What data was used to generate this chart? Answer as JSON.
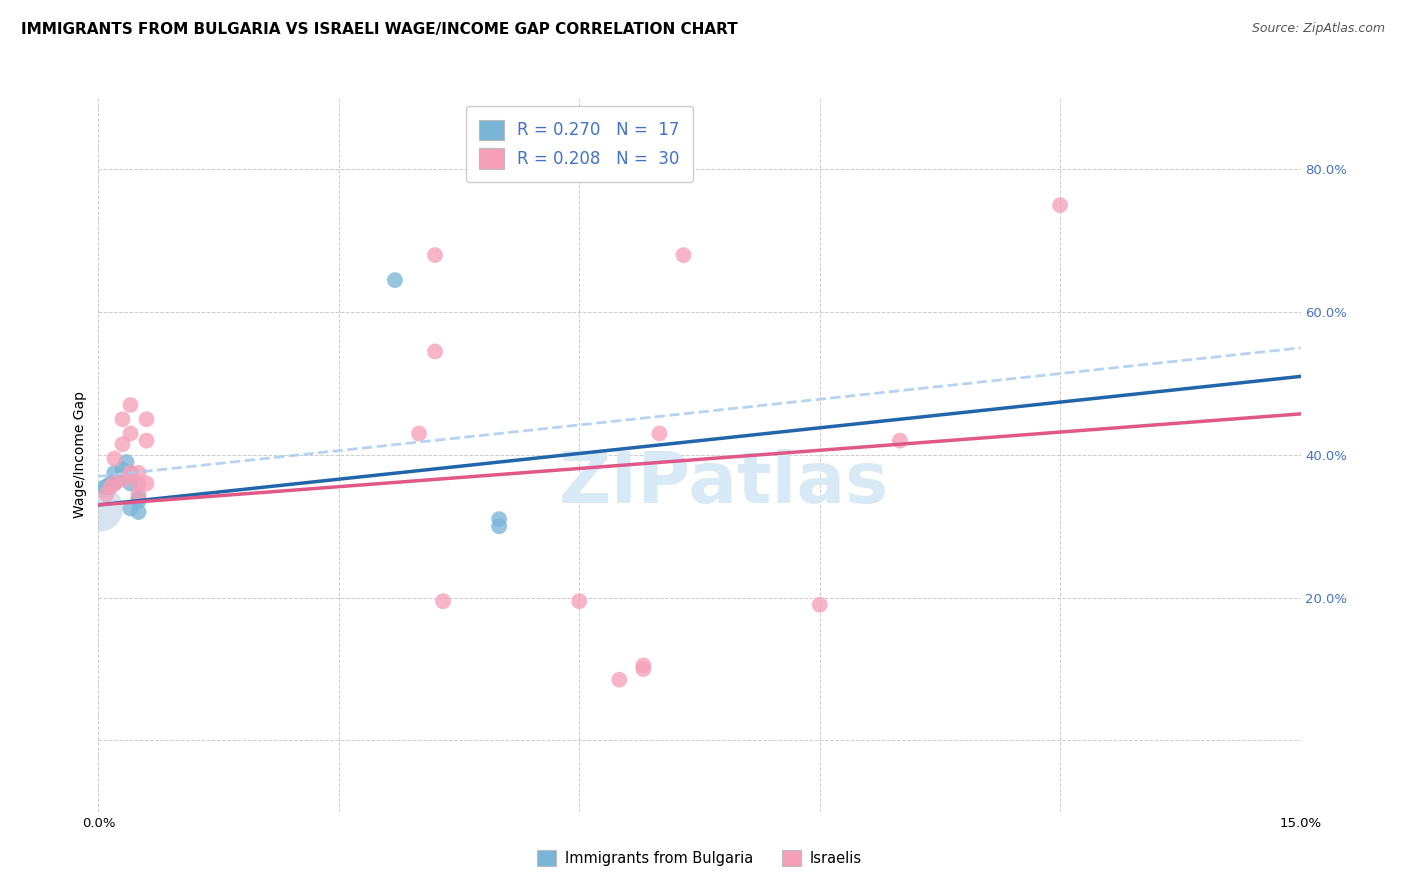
{
  "title": "IMMIGRANTS FROM BULGARIA VS ISRAELI WAGE/INCOME GAP CORRELATION CHART",
  "source": "Source: ZipAtlas.com",
  "ylabel": "Wage/Income Gap",
  "xlim": [
    0.0,
    0.15
  ],
  "ylim": [
    -0.1,
    0.9
  ],
  "blue_scatter": [
    [
      0.0008,
      0.355
    ],
    [
      0.001,
      0.355
    ],
    [
      0.0015,
      0.36
    ],
    [
      0.002,
      0.36
    ],
    [
      0.002,
      0.375
    ],
    [
      0.003,
      0.37
    ],
    [
      0.003,
      0.38
    ],
    [
      0.0035,
      0.39
    ],
    [
      0.004,
      0.325
    ],
    [
      0.004,
      0.36
    ],
    [
      0.004,
      0.375
    ],
    [
      0.005,
      0.32
    ],
    [
      0.005,
      0.335
    ],
    [
      0.005,
      0.34
    ],
    [
      0.037,
      0.645
    ],
    [
      0.05,
      0.3
    ],
    [
      0.05,
      0.31
    ]
  ],
  "blue_scatter_large": [
    [
      0.0002,
      0.325
    ]
  ],
  "pink_scatter": [
    [
      0.001,
      0.345
    ],
    [
      0.0015,
      0.355
    ],
    [
      0.002,
      0.36
    ],
    [
      0.002,
      0.395
    ],
    [
      0.003,
      0.365
    ],
    [
      0.003,
      0.415
    ],
    [
      0.003,
      0.45
    ],
    [
      0.004,
      0.37
    ],
    [
      0.004,
      0.375
    ],
    [
      0.004,
      0.43
    ],
    [
      0.004,
      0.47
    ],
    [
      0.005,
      0.345
    ],
    [
      0.005,
      0.36
    ],
    [
      0.005,
      0.375
    ],
    [
      0.006,
      0.36
    ],
    [
      0.006,
      0.42
    ],
    [
      0.006,
      0.45
    ],
    [
      0.04,
      0.43
    ],
    [
      0.042,
      0.545
    ],
    [
      0.042,
      0.68
    ],
    [
      0.043,
      0.195
    ],
    [
      0.06,
      0.195
    ],
    [
      0.065,
      0.085
    ],
    [
      0.068,
      0.1
    ],
    [
      0.068,
      0.105
    ],
    [
      0.07,
      0.43
    ],
    [
      0.073,
      0.68
    ],
    [
      0.09,
      0.19
    ],
    [
      0.1,
      0.42
    ],
    [
      0.12,
      0.75
    ]
  ],
  "blue_color": "#7ab5d8",
  "pink_color": "#f5a0b8",
  "blue_line_color": "#2266aa",
  "pink_line_color": "#e05888",
  "blue_dashed_color": "#aaccee",
  "background_color": "#ffffff",
  "grid_color": "#cccccc",
  "title_fontsize": 11,
  "axis_label_fontsize": 10,
  "tick_fontsize": 9.5,
  "watermark_text": "ZIPatlas",
  "watermark_color": "#d8eaf5",
  "watermark_fontsize": 52,
  "blue_line_intercept": 0.33,
  "blue_line_slope": 1.2,
  "blue_dashed_intercept": 0.37,
  "blue_dashed_slope": 1.2,
  "pink_line_intercept": 0.33,
  "pink_line_slope": 0.85
}
